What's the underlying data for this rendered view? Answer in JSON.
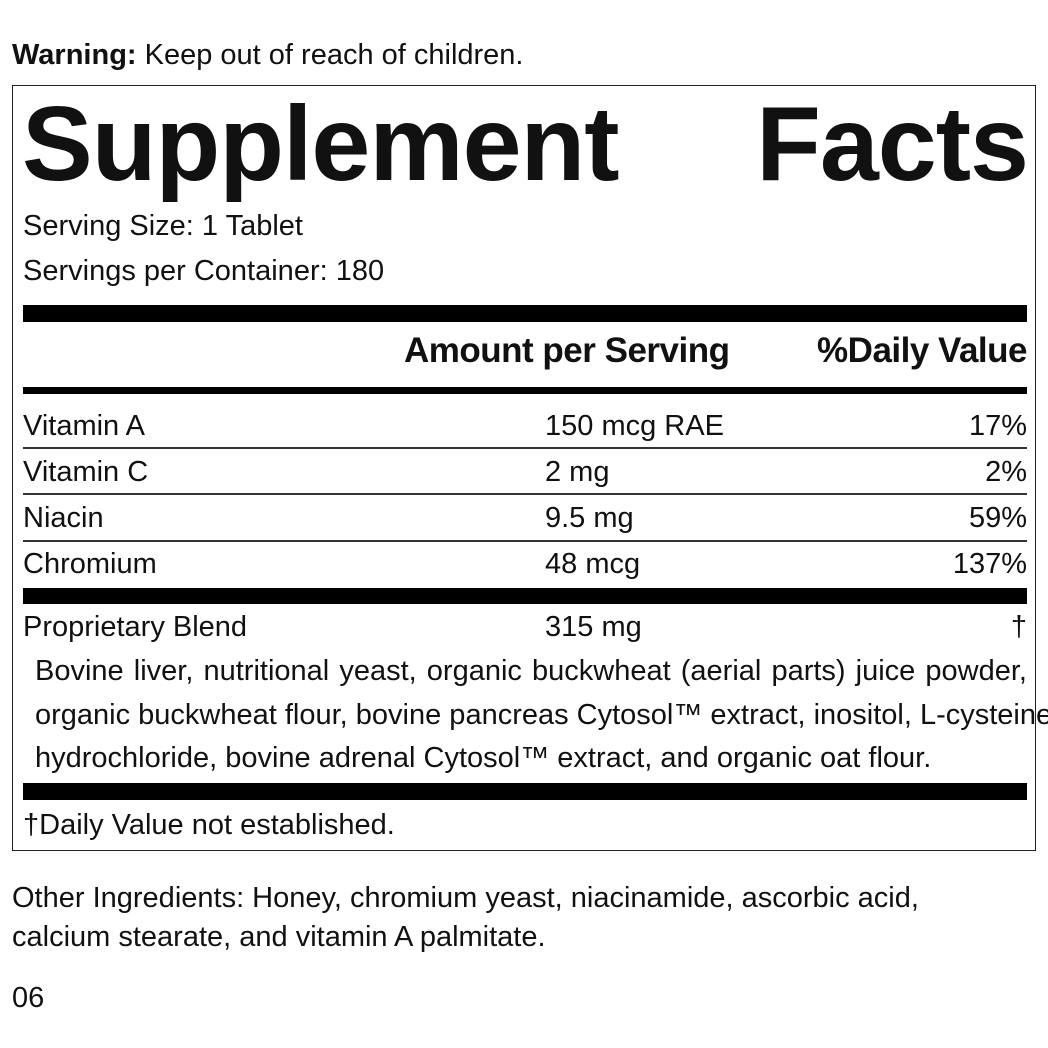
{
  "warning": {
    "label": "Warning:",
    "text": " Keep out of reach of children."
  },
  "facts": {
    "title_words": [
      "Supplement",
      "Facts"
    ],
    "serving_size": "Serving Size: 1 Tablet",
    "servings_per_container": "Servings per Container: 180",
    "headers": {
      "amount": "Amount per Serving",
      "dv": "%Daily Value"
    },
    "nutrients": [
      {
        "name": "Vitamin A",
        "amount": "150 mcg RAE",
        "dv": "17%"
      },
      {
        "name": "Vitamin C",
        "amount": "2 mg",
        "dv": "2%"
      },
      {
        "name": "Niacin",
        "amount": "9.5 mg",
        "dv": "59%"
      },
      {
        "name": "Chromium",
        "amount": "48 mcg",
        "dv": "137%"
      }
    ],
    "blend": {
      "name": "Proprietary Blend",
      "amount": "315 mg",
      "dv": "†",
      "ingredients_lines": [
        "Bovine liver, nutritional yeast, organic buckwheat (aerial parts) juice powder,",
        "organic buckwheat flour, bovine pancreas Cytosol™ extract, inositol, L-cysteine",
        "hydrochloride, bovine adrenal Cytosol™ extract, and organic oat flour."
      ]
    },
    "footnote": "†Daily Value not established."
  },
  "other_ingredients": [
    "Other Ingredients: Honey, chromium yeast, niacinamide, ascorbic acid,",
    "calcium stearate, and vitamin A palmitate."
  ],
  "code": "06"
}
